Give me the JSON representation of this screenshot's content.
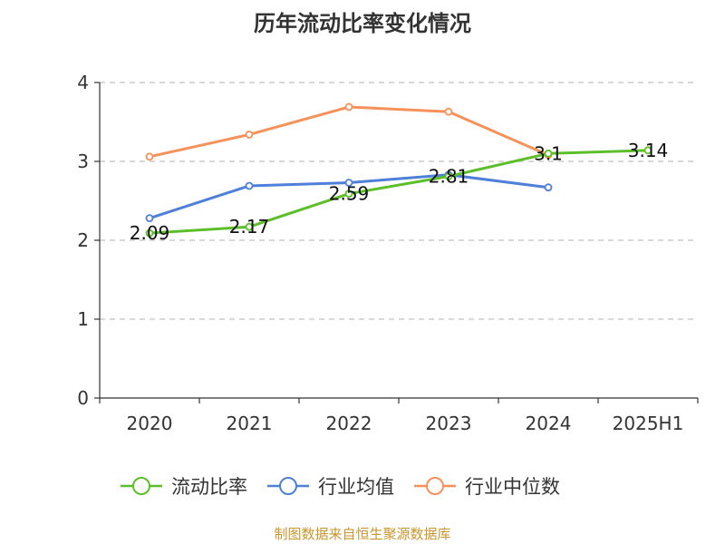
{
  "chart_data": {
    "type": "line",
    "title": "历年流动比率变化情况",
    "categories": [
      "2020",
      "2021",
      "2022",
      "2023",
      "2024",
      "2025H1"
    ],
    "ylim": [
      0,
      4
    ],
    "yticks": [
      0,
      1,
      2,
      3,
      4
    ],
    "grid": true,
    "legend_position": "bottom",
    "series": [
      {
        "name": "流动比率",
        "color": "#5cbf2a",
        "values": [
          2.09,
          2.17,
          2.59,
          2.81,
          3.1,
          3.14
        ],
        "labels": [
          "2.09",
          "2.17",
          "2.59",
          "2.81",
          "3.1",
          "3.14"
        ]
      },
      {
        "name": "行业均值",
        "color": "#4e7fd9",
        "values": [
          2.28,
          2.69,
          2.73,
          2.83,
          2.67,
          null
        ]
      },
      {
        "name": "行业中位数",
        "color": "#f7915a",
        "values": [
          3.06,
          3.34,
          3.69,
          3.63,
          3.08,
          null
        ]
      }
    ]
  },
  "source": "制图数据来自恒生聚源数据库"
}
